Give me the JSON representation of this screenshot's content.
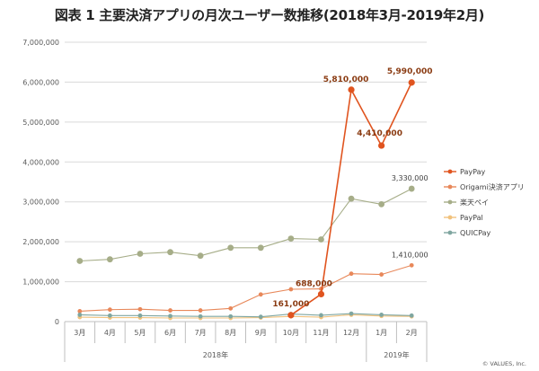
{
  "title": "図表 1 主要決済アプリの月次ユーザー数推移(2018年3月-2019年2月)",
  "credit": "© VALUES, Inc.",
  "chart_data": {
    "type": "line",
    "categories": [
      "3月",
      "4月",
      "5月",
      "6月",
      "7月",
      "8月",
      "9月",
      "10月",
      "11月",
      "12月",
      "1月",
      "2月"
    ],
    "year_groups": [
      {
        "label": "2018年",
        "start": 0,
        "end": 9
      },
      {
        "label": "2019年",
        "start": 10,
        "end": 11
      }
    ],
    "ylim": [
      0,
      7000000
    ],
    "yticks": [
      0,
      1000000,
      2000000,
      3000000,
      4000000,
      5000000,
      6000000,
      7000000
    ],
    "ytick_labels": [
      "0",
      "1,000,000",
      "2,000,000",
      "3,000,000",
      "4,000,000",
      "5,000,000",
      "6,000,000",
      "7,000,000"
    ],
    "grid": true,
    "legend_position": "right",
    "series": [
      {
        "name": "PayPay",
        "color": "#e0541f",
        "values": [
          null,
          null,
          null,
          null,
          null,
          null,
          null,
          161000,
          688000,
          5810000,
          4410000,
          5990000
        ],
        "labels": [
          null,
          null,
          null,
          null,
          null,
          null,
          null,
          "161,000",
          "688,000",
          "5,810,000",
          "4,410,000",
          "5,990,000"
        ]
      },
      {
        "name": "Origami決済アプリ",
        "color": "#e8885a",
        "values": [
          260000,
          300000,
          310000,
          280000,
          280000,
          330000,
          680000,
          810000,
          820000,
          1200000,
          1180000,
          1410000
        ],
        "labels": [
          null,
          null,
          null,
          null,
          null,
          null,
          null,
          null,
          null,
          null,
          null,
          "1,410,000"
        ]
      },
      {
        "name": "楽天ペイ",
        "color": "#a6ad88",
        "values": [
          1520000,
          1560000,
          1700000,
          1740000,
          1650000,
          1850000,
          1850000,
          2080000,
          2060000,
          3080000,
          2940000,
          3330000
        ],
        "labels": [
          null,
          null,
          null,
          null,
          null,
          null,
          null,
          null,
          null,
          null,
          null,
          "3,330,000"
        ]
      },
      {
        "name": "PayPal",
        "color": "#f1c27d",
        "values": [
          110000,
          100000,
          100000,
          90000,
          90000,
          90000,
          100000,
          130000,
          110000,
          170000,
          140000,
          130000
        ],
        "labels": []
      },
      {
        "name": "QUICPay",
        "color": "#7fa6a0",
        "values": [
          170000,
          150000,
          150000,
          140000,
          130000,
          130000,
          120000,
          190000,
          160000,
          200000,
          170000,
          150000
        ],
        "labels": []
      }
    ]
  }
}
